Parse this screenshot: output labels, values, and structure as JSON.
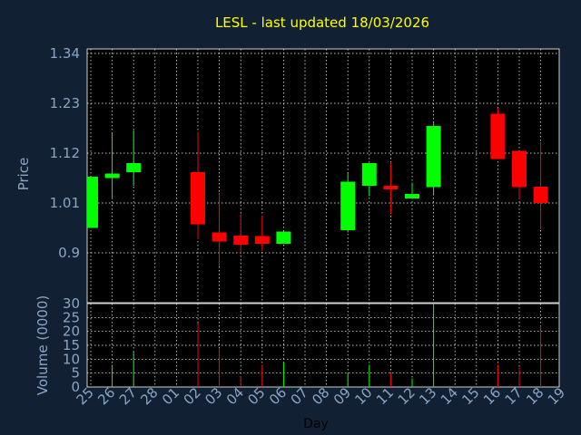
{
  "chart_data": {
    "type": "candlestick",
    "title": "LESL - last updated 18/03/2026",
    "xlabel": "Day",
    "ylabel": "Price",
    "volume_label": "Volume (0000)",
    "x_ticks": [
      "25",
      "26",
      "27",
      "28",
      "01",
      "02",
      "03",
      "04",
      "05",
      "06",
      "07",
      "08",
      "09",
      "10",
      "11",
      "12",
      "13",
      "14",
      "15",
      "16",
      "17",
      "18",
      "19"
    ],
    "price_ticks": [
      "1.34",
      "1.23",
      "1.12",
      "1.01",
      "0.9"
    ],
    "price_tick_values": [
      1.34,
      1.23,
      1.12,
      1.01,
      0.9
    ],
    "ylim": [
      0.79,
      1.35
    ],
    "volume_ticks": [
      "30",
      "25",
      "20",
      "15",
      "10",
      "5",
      "0"
    ],
    "volume_tick_values": [
      30,
      25,
      20,
      15,
      10,
      5,
      0
    ],
    "volume_lim": [
      0,
      30
    ],
    "grid": true,
    "colors": {
      "background": "#112033",
      "plot_area": "#000000",
      "grid": "#ffffff",
      "up": "#00ff00",
      "down": "#ff0000",
      "title": "#ffff00",
      "text": "#8aa6c4"
    },
    "candles": [
      {
        "x": "25",
        "open": 0.955,
        "close": 1.068,
        "high": 1.068,
        "low": 0.955,
        "volume": 0
      },
      {
        "x": "26",
        "open": 1.065,
        "close": 1.075,
        "high": 1.163,
        "low": 1.02,
        "volume": 8
      },
      {
        "x": "27",
        "open": 1.078,
        "close": 1.098,
        "high": 1.17,
        "low": 1.048,
        "volume": 13
      },
      {
        "x": "02",
        "open": 1.078,
        "close": 0.963,
        "high": 1.167,
        "low": 0.93,
        "volume": 23
      },
      {
        "x": "03",
        "open": 0.945,
        "close": 0.925,
        "high": 1.032,
        "low": 0.87,
        "volume": 14
      },
      {
        "x": "04",
        "open": 0.938,
        "close": 0.918,
        "high": 0.985,
        "low": 0.9,
        "volume": 4
      },
      {
        "x": "05",
        "open": 0.937,
        "close": 0.92,
        "high": 0.982,
        "low": 0.905,
        "volume": 8
      },
      {
        "x": "06",
        "open": 0.92,
        "close": 0.947,
        "high": 0.947,
        "low": 0.92,
        "volume": 9
      },
      {
        "x": "09",
        "open": 0.95,
        "close": 1.057,
        "high": 1.075,
        "low": 0.945,
        "volume": 5
      },
      {
        "x": "10",
        "open": 1.048,
        "close": 1.098,
        "high": 1.098,
        "low": 1.025,
        "volume": 8
      },
      {
        "x": "11",
        "open": 1.048,
        "close": 1.04,
        "high": 1.098,
        "low": 0.985,
        "volume": 5
      },
      {
        "x": "12",
        "open": 1.02,
        "close": 1.03,
        "high": 1.055,
        "low": 1.02,
        "volume": 3
      },
      {
        "x": "13",
        "open": 1.045,
        "close": 1.18,
        "high": 1.19,
        "low": 1.03,
        "volume": 30
      },
      {
        "x": "16",
        "open": 1.207,
        "close": 1.107,
        "high": 1.22,
        "low": 1.107,
        "volume": 8
      },
      {
        "x": "17",
        "open": 1.125,
        "close": 1.045,
        "high": 1.125,
        "low": 1.018,
        "volume": 7
      },
      {
        "x": "18",
        "open": 1.046,
        "close": 1.01,
        "high": 1.145,
        "low": 0.952,
        "volume": 22
      }
    ]
  }
}
